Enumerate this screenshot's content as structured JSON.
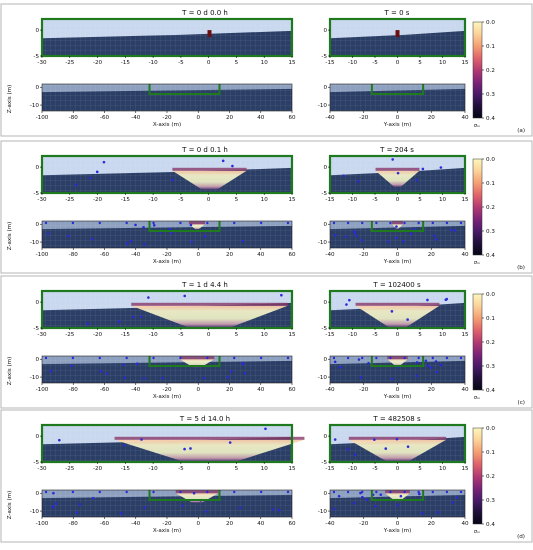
{
  "figure": {
    "axis_labels": {
      "x": "X-axis (m)",
      "y": "Y-axis (m)",
      "z": "Z-axis (m)"
    },
    "colorbar": {
      "label": "σₘ",
      "ticks": [
        "0.0",
        "0.1",
        "0.2",
        "0.3",
        "0.4"
      ]
    },
    "colors": {
      "panel_border": "#b5b5b5",
      "frame_green": "#1f7a1f",
      "ground_dark": "#2b3e66",
      "air_light": "#c9d8ee",
      "marker_blue": "#2a2ad8"
    }
  },
  "chart_data": [
    {
      "id": "a",
      "letter": "(a)",
      "title_left": "T = 0 d  0.0 h",
      "title_right": "T = 0 s",
      "xz_ticks_top": [
        "-30",
        "-25",
        "-20",
        "-15",
        "-10",
        "-5",
        "0",
        "5",
        "10",
        "15"
      ],
      "yz_ticks_top": [
        "-15",
        "-10",
        "-5",
        "0",
        "5",
        "10",
        "15"
      ],
      "xz_ticks_bottom": [
        "-100",
        "-80",
        "-60",
        "-40",
        "-20",
        "0",
        "20",
        "40",
        "60"
      ],
      "yz_ticks_bottom": [
        "-40",
        "-20",
        "0",
        "20",
        "40"
      ],
      "z_ticks_top": [
        "0",
        "-5"
      ],
      "z_ticks_bottom": [
        "0",
        "-10"
      ],
      "type": "heatmap",
      "x_range_top": [
        -30,
        15
      ],
      "x_range_bottom": [
        -100,
        60
      ],
      "y_range_top": [
        -15,
        15
      ],
      "y_range_bottom": [
        -40,
        40
      ],
      "z_range_top": [
        -5,
        3
      ],
      "z_range_bottom": [
        -15,
        3
      ],
      "color_range": [
        0.0,
        0.4
      ],
      "plume_halfwidth_m": 0
    },
    {
      "id": "b",
      "letter": "(b)",
      "title_left": "T = 0 d  0.1 h",
      "title_right": "T = 204 s",
      "xz_ticks_top": [
        "-30",
        "-25",
        "-20",
        "-15",
        "-10",
        "-5",
        "0",
        "5",
        "10",
        "15"
      ],
      "yz_ticks_top": [
        "-15",
        "-10",
        "-5",
        "0",
        "5",
        "10",
        "15"
      ],
      "xz_ticks_bottom": [
        "-100",
        "-80",
        "-60",
        "-40",
        "-20",
        "0",
        "20",
        "40",
        "60"
      ],
      "yz_ticks_bottom": [
        "-40",
        "-20",
        "0",
        "20",
        "40"
      ],
      "z_ticks_top": [
        "0",
        "-5"
      ],
      "z_ticks_bottom": [
        "0",
        "-10"
      ],
      "type": "heatmap",
      "x_range_top": [
        -30,
        15
      ],
      "x_range_bottom": [
        -100,
        60
      ],
      "y_range_top": [
        -15,
        15
      ],
      "y_range_bottom": [
        -40,
        40
      ],
      "z_range_top": [
        -5,
        3
      ],
      "z_range_bottom": [
        -15,
        3
      ],
      "color_range": [
        0.0,
        0.4
      ],
      "plume_halfwidth_m": 4
    },
    {
      "id": "c",
      "letter": "(c)",
      "title_left": "T = 1 d  4.4 h",
      "title_right": "T = 102400 s",
      "xz_ticks_top": [
        "-30",
        "-25",
        "-20",
        "-15",
        "-10",
        "-5",
        "0",
        "5",
        "10",
        "15"
      ],
      "yz_ticks_top": [
        "-15",
        "-10",
        "-5",
        "0",
        "5",
        "10",
        "15"
      ],
      "xz_ticks_bottom": [
        "-100",
        "-80",
        "-60",
        "-40",
        "-20",
        "0",
        "20",
        "40",
        "60"
      ],
      "yz_ticks_bottom": [
        "-40",
        "-20",
        "0",
        "20",
        "40"
      ],
      "z_ticks_top": [
        "0",
        "-5"
      ],
      "z_ticks_bottom": [
        "0",
        "-10"
      ],
      "type": "heatmap",
      "x_range_top": [
        -30,
        15
      ],
      "x_range_bottom": [
        -100,
        60
      ],
      "y_range_top": [
        -15,
        15
      ],
      "y_range_bottom": [
        -40,
        40
      ],
      "z_range_top": [
        -5,
        3
      ],
      "z_range_bottom": [
        -15,
        3
      ],
      "color_range": [
        0.0,
        0.4
      ],
      "plume_halfwidth_m": 11
    },
    {
      "id": "d",
      "letter": "(d)",
      "title_left": "T = 5 d 14.0 h",
      "title_right": "T = 482508 s",
      "xz_ticks_top": [
        "-30",
        "-25",
        "-20",
        "-15",
        "-10",
        "-5",
        "0",
        "5",
        "10",
        "15"
      ],
      "yz_ticks_top": [
        "-15",
        "-10",
        "-5",
        "0",
        "5",
        "10",
        "15"
      ],
      "xz_ticks_bottom": [
        "-100",
        "-80",
        "-60",
        "-40",
        "-20",
        "0",
        "20",
        "40",
        "60"
      ],
      "yz_ticks_bottom": [
        "-40",
        "-20",
        "0",
        "20",
        "40"
      ],
      "z_ticks_top": [
        "0",
        "-5"
      ],
      "z_ticks_bottom": [
        "0",
        "-10"
      ],
      "type": "heatmap",
      "x_range_top": [
        -30,
        15
      ],
      "x_range_bottom": [
        -100,
        60
      ],
      "y_range_top": [
        -15,
        15
      ],
      "y_range_bottom": [
        -40,
        40
      ],
      "z_range_top": [
        -5,
        3
      ],
      "z_range_bottom": [
        -15,
        3
      ],
      "color_range": [
        0.0,
        0.4
      ],
      "plume_halfwidth_m": 14
    }
  ]
}
